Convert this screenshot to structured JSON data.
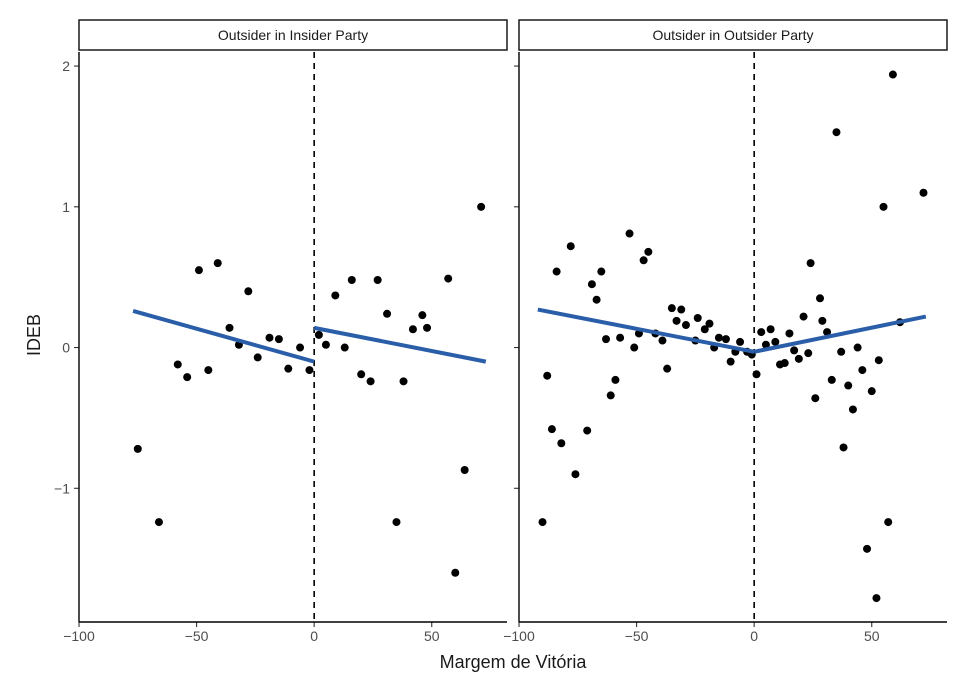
{
  "chart_data": {
    "type": "scatter",
    "xlabel": "Margem de Vitória",
    "ylabel": "IDEB",
    "xlim": [
      -100,
      82
    ],
    "ylim": [
      -1.95,
      2.1
    ],
    "x_ticks": [
      -100,
      -50,
      0,
      50
    ],
    "x_tick_labels": [
      "−100",
      "−50",
      "0",
      "50"
    ],
    "y_ticks": [
      -1,
      0,
      1,
      2
    ],
    "y_tick_labels": [
      "−1",
      "0",
      "1",
      "2"
    ],
    "grid": false,
    "cutoff_x": 0,
    "colors": {
      "points": "#000000",
      "fit": "#2a5ea8",
      "cutoff": "#000000"
    },
    "panels": [
      {
        "title": "Outsider in Insider Party",
        "points": [
          [
            -75,
            -0.72
          ],
          [
            -66,
            -1.24
          ],
          [
            -58,
            -0.12
          ],
          [
            -54,
            -0.21
          ],
          [
            -49,
            0.55
          ],
          [
            -45,
            -0.16
          ],
          [
            -41,
            0.6
          ],
          [
            -36,
            0.14
          ],
          [
            -32,
            0.02
          ],
          [
            -28,
            0.4
          ],
          [
            -24,
            -0.07
          ],
          [
            -19,
            0.07
          ],
          [
            -15,
            0.06
          ],
          [
            -11,
            -0.15
          ],
          [
            -6,
            0.0
          ],
          [
            -2,
            -0.16
          ],
          [
            2,
            0.09
          ],
          [
            5,
            0.02
          ],
          [
            9,
            0.37
          ],
          [
            13,
            0.0
          ],
          [
            16,
            0.48
          ],
          [
            20,
            -0.19
          ],
          [
            24,
            -0.24
          ],
          [
            27,
            0.48
          ],
          [
            31,
            0.24
          ],
          [
            35,
            -1.24
          ],
          [
            38,
            -0.24
          ],
          [
            42,
            0.13
          ],
          [
            46,
            0.23
          ],
          [
            48,
            0.14
          ],
          [
            57,
            0.49
          ],
          [
            60,
            -1.6
          ],
          [
            64,
            -0.87
          ],
          [
            71,
            1.0
          ]
        ],
        "fit_left": [
          [
            -77,
            0.26
          ],
          [
            0,
            -0.1
          ]
        ],
        "fit_right": [
          [
            0,
            0.14
          ],
          [
            73,
            -0.1
          ]
        ]
      },
      {
        "title": "Outsider in Outsider Party",
        "points": [
          [
            -90,
            -1.24
          ],
          [
            -88,
            -0.2
          ],
          [
            -86,
            -0.58
          ],
          [
            -84,
            0.54
          ],
          [
            -82,
            -0.68
          ],
          [
            -78,
            0.72
          ],
          [
            -76,
            -0.9
          ],
          [
            -71,
            -0.59
          ],
          [
            -69,
            0.45
          ],
          [
            -67,
            0.34
          ],
          [
            -63,
            0.06
          ],
          [
            -65,
            0.54
          ],
          [
            -61,
            -0.34
          ],
          [
            -59,
            -0.23
          ],
          [
            -57,
            0.07
          ],
          [
            -53,
            0.81
          ],
          [
            -51,
            0.0
          ],
          [
            -49,
            0.1
          ],
          [
            -47,
            0.62
          ],
          [
            -45,
            0.68
          ],
          [
            -42,
            0.1
          ],
          [
            -39,
            0.05
          ],
          [
            -37,
            -0.15
          ],
          [
            -35,
            0.28
          ],
          [
            -33,
            0.19
          ],
          [
            -31,
            0.27
          ],
          [
            -29,
            0.16
          ],
          [
            -25,
            0.05
          ],
          [
            -24,
            0.21
          ],
          [
            -21,
            0.13
          ],
          [
            -19,
            0.17
          ],
          [
            -17,
            0.0
          ],
          [
            -15,
            0.07
          ],
          [
            -12,
            0.06
          ],
          [
            -10,
            -0.1
          ],
          [
            -8,
            -0.03
          ],
          [
            -6,
            0.04
          ],
          [
            -3,
            -0.03
          ],
          [
            -1,
            -0.05
          ],
          [
            1,
            -0.19
          ],
          [
            3,
            0.11
          ],
          [
            5,
            0.02
          ],
          [
            7,
            0.13
          ],
          [
            9,
            0.04
          ],
          [
            11,
            -0.12
          ],
          [
            13,
            -0.11
          ],
          [
            15,
            0.1
          ],
          [
            17,
            -0.02
          ],
          [
            19,
            -0.08
          ],
          [
            21,
            0.22
          ],
          [
            23,
            -0.04
          ],
          [
            24,
            0.6
          ],
          [
            26,
            -0.36
          ],
          [
            28,
            0.35
          ],
          [
            29,
            0.19
          ],
          [
            31,
            0.11
          ],
          [
            33,
            -0.23
          ],
          [
            35,
            1.53
          ],
          [
            37,
            -0.03
          ],
          [
            38,
            -0.71
          ],
          [
            40,
            -0.27
          ],
          [
            42,
            -0.44
          ],
          [
            44,
            0.0
          ],
          [
            46,
            -0.16
          ],
          [
            48,
            -1.43
          ],
          [
            50,
            -0.31
          ],
          [
            52,
            -1.78
          ],
          [
            53,
            -0.09
          ],
          [
            55,
            1.0
          ],
          [
            57,
            -1.24
          ],
          [
            59,
            1.94
          ],
          [
            62,
            0.18
          ],
          [
            72,
            1.1
          ]
        ],
        "fit_left": [
          [
            -92,
            0.27
          ],
          [
            0,
            -0.03
          ]
        ],
        "fit_right": [
          [
            0,
            -0.03
          ],
          [
            73,
            0.22
          ]
        ]
      }
    ]
  }
}
